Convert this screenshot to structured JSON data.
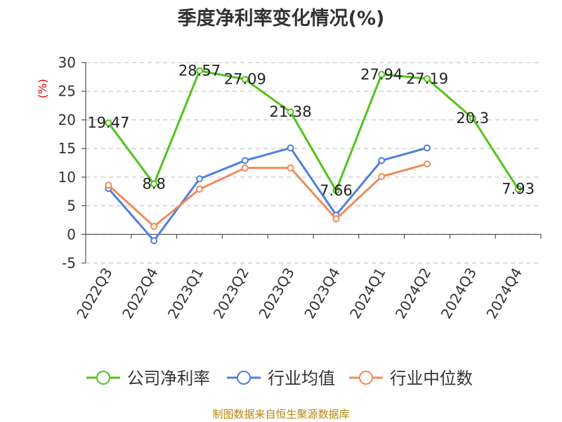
{
  "chart_data": {
    "type": "line",
    "title": "季度净利率变化情况(%)",
    "ylabel": "(%)",
    "xlabel": "",
    "categories": [
      "2022Q3",
      "2022Q4",
      "2023Q1",
      "2023Q2",
      "2023Q3",
      "2023Q4",
      "2024Q1",
      "2024Q2",
      "2024Q3",
      "2024Q4"
    ],
    "ylim": [
      -5,
      30
    ],
    "yticks": [
      "30",
      "25",
      "20",
      "15",
      "10",
      "5",
      "0",
      "-5"
    ],
    "grid": true,
    "legend_position": "bottom",
    "series": [
      {
        "name": "公司净利率",
        "color": "#52c41a",
        "values": [
          19.47,
          8.8,
          28.57,
          27.09,
          21.38,
          7.66,
          27.94,
          27.19,
          20.3,
          7.93
        ],
        "labels": [
          "19.47",
          "8.8",
          "28.57",
          "27.09",
          "21.38",
          "7.66",
          "27.94",
          "27.19",
          "20.3",
          "7.93"
        ]
      },
      {
        "name": "行业均值",
        "color": "#4f7fe0",
        "values": [
          8.0,
          -1.1,
          9.7,
          12.9,
          15.1,
          3.4,
          12.9,
          15.1,
          null,
          null
        ]
      },
      {
        "name": "行业中位数",
        "color": "#f08a5d",
        "values": [
          8.6,
          1.4,
          7.9,
          11.6,
          11.6,
          2.7,
          10.1,
          12.3,
          null,
          null
        ]
      }
    ]
  },
  "source": "制图数据来自恒生聚源数据库"
}
